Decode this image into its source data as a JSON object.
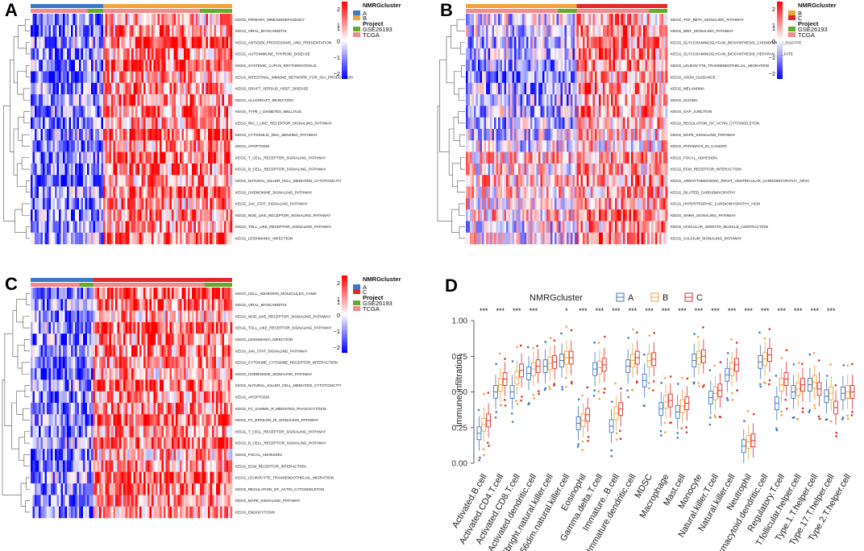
{
  "colors": {
    "A": "#3A78C9",
    "B": "#F2A33A",
    "C": "#E4292B",
    "GSE26193": "#66AA2B",
    "TCGA": "#F08C8C",
    "high": "#FF0000",
    "low": "#0000FF",
    "mid": "#FFFFFF"
  },
  "panels": [
    {
      "label": "A",
      "clusters": [
        "A",
        "B"
      ],
      "split": 0.36,
      "gse": [
        0.22,
        0.25
      ],
      "legend": {
        "title": "NMRGcluster",
        "project_title": "Project",
        "entries": [
          "A",
          "B"
        ],
        "projects": [
          "GSE26193",
          "TCGA"
        ],
        "scale_ticks": [
          "2",
          "1",
          "0",
          "−1",
          "−2"
        ],
        "note": "1"
      },
      "rows": [
        "KEGG_PRIMARY_IMMUNODEFICIENCY",
        "KEGG_VIRAL_MYOCARDITIS",
        "KEGG_ANTIGEN_PROCESSING_AND_PRESENTATION",
        "KEGG_AUTOIMMUNE_THYROID_DISEASE",
        "KEGG_SYSTEMIC_LUPUS_ERYTHEMATOSUS",
        "KEGG_INTESTINAL_IMMUNE_NETWORK_FOR_IGA_PRODUCTION",
        "KEGG_GRAFT_VERSUS_HOST_DISEASE",
        "KEGG_ALLOGRAFT_REJECTION",
        "KEGG_TYPE_I_DIABETES_MELLITUS",
        "KEGG_RIG_I_LIKE_RECEPTOR_SIGNALING_PATHWAY",
        "KEGG_CYTOSOLIC_DNA_SENSING_PATHWAY",
        "KEGG_APOPTOSIS",
        "KEGG_T_CELL_RECEPTOR_SIGNALING_PATHWAY",
        "KEGG_B_CELL_RECEPTOR_SIGNALING_PATHWAY",
        "KEGG_NATURAL_KILLER_CELL_MEDIATED_CYTOTOXICITY",
        "KEGG_CHEMOKINE_SIGNALING_PATHWAY",
        "KEGG_JAK_STAT_SIGNALING_PATHWAY",
        "KEGG_NOD_LIKE_RECEPTOR_SIGNALING_PATHWAY",
        "KEGG_TOLL_LIKE_RECEPTOR_SIGNALING_PATHWAY",
        "KEGG_LEISHMANIA_INFECTION"
      ]
    },
    {
      "label": "B",
      "clusters": [
        "B",
        "C"
      ],
      "split": 0.55,
      "gse": [
        0.17,
        0.2
      ],
      "legend": {
        "title": "NMRGcluster",
        "project_title": "Project",
        "entries": [
          "B",
          "C"
        ],
        "projects": [
          "GSE26193",
          "TCGA"
        ],
        "scale_ticks": [
          "2",
          "1",
          "0",
          "−1",
          "−2"
        ],
        "note": "1"
      },
      "rows": [
        "KEGG_TGF_BETA_SIGNALING_PATHWAY",
        "KEGG_WNT_SIGNALING_PATHWAY",
        "KEGG_GLYCOSAMINOGLYCAN_BIOSYNTHESIS_CHONDROITIN_SULFATE",
        "KEGG_GLYCOSAMINOGLYCAN_BIOSYNTHESIS_HEPARAN_SULFATE",
        "KEGG_LEUKOCYTE_TRANSENDOTHELIAL_MIGRATION",
        "KEGG_AXON_GUIDANCE",
        "KEGG_MELANOMA",
        "KEGG_GLIOMA",
        "KEGG_GAP_JUNCTION",
        "KEGG_REGULATION_OF_ACTIN_CYTOSKELETON",
        "KEGG_MAPK_SIGNALING_PATHWAY",
        "KEGG_PATHWAYS_IN_CANCER",
        "KEGG_FOCAL_ADHESION",
        "KEGG_ECM_RECEPTOR_INTERACTION",
        "KEGG_ARRHYTHMOGENIC_RIGHT_VENTRICULAR_CARDIOMYOPATHY_ARVC",
        "KEGG_DILATED_CARDIOMYOPATHY",
        "KEGG_HYPERTROPHIC_CARDIOMYOPATHY_HCM",
        "KEGG_GNRH_SIGNALING_PATHWAY",
        "KEGG_VASCULAR_SMOOTH_MUSCLE_CONTRACTION",
        "KEGG_CALCIUM_SIGNALING_PATHWAY"
      ]
    },
    {
      "label": "C",
      "clusters": [
        "A",
        "C"
      ],
      "split": 0.31,
      "gse": [
        0.22,
        0.2
      ],
      "legend": {
        "title": "NMRGcluster",
        "project_title": "Project",
        "entries": [
          "A",
          "C"
        ],
        "projects": [
          "GSE26193",
          "TCGA"
        ],
        "scale_ticks": [
          "2",
          "1",
          "0",
          "−1",
          "−2"
        ],
        "note": "1"
      },
      "rows": [
        "KEGG_CELL_ADHESION_MOLECULES_CAMS",
        "KEGG_VIRAL_MYOCARDITIS",
        "KEGG_NOD_LIKE_RECEPTOR_SIGNALING_PATHWAY",
        "KEGG_TOLL_LIKE_RECEPTOR_SIGNALING_PATHWAY",
        "KEGG_LEISHMANIA_INFECTION",
        "KEGG_JAK_STAT_SIGNALING_PATHWAY",
        "KEGG_CYTOKINE_CYTOKINE_RECEPTOR_INTERACTION",
        "KEGG_CHEMOKINE_SIGNALING_PATHWAY",
        "KEGG_NATURAL_KILLER_CELL_MEDIATED_CYTOTOXICITY",
        "KEGG_APOPTOSIS",
        "KEGG_FC_GAMMA_R_MEDIATED_PHAGOCYTOSIS",
        "KEGG_FC_EPSILON_RI_SIGNALING_PATHWAY",
        "KEGG_T_CELL_RECEPTOR_SIGNALING_PATHWAY",
        "KEGG_B_CELL_RECEPTOR_SIGNALING_PATHWAY",
        "KEGG_FOCAL_ADHESION",
        "KEGG_ECM_RECEPTOR_INTERACTION",
        "KEGG_LEUKOCYTE_TRANSENDOTHELIAL_MIGRATION",
        "KEGG_REGULATION_OF_ACTIN_CYTOSKELETON",
        "KEGG_MAPK_SIGNALING_PATHWAY",
        "KEGG_ENDOCYTOSIS"
      ]
    }
  ],
  "chart_data": {
    "type": "box",
    "label": "D",
    "legend_title": "NMRGcluster",
    "groups": [
      "A",
      "B",
      "C"
    ],
    "ylabel": "Immune infiltration",
    "ylim": [
      0,
      1
    ],
    "yticks": [
      "0.00",
      "0.25",
      "0.50",
      "0.75",
      "1.00"
    ],
    "categories": [
      "Activated.B.cell",
      "Activated.CD4.T.cell",
      "Activated.CD8.T.cell",
      "Activated.dendritic.cell",
      "CD56bright.natural.killer.cell",
      "CD56dim.natural.killer.cell",
      "Eosinophil",
      "Gamma.delta.T.cell",
      "Immature..B.cell",
      "Immature.dendritic.cell",
      "MDSC",
      "Macrophage",
      "Mast.cell",
      "Monocyte",
      "Natural.killer.T.cell",
      "Natural.killer.cell",
      "Neutrophil",
      "Plasmacytoid.dendritic.cell",
      "Regulatory.T.cell",
      "T.follicular.helper.cell",
      "Type.1.T.helper.cell",
      "Type.17.T.helper.cell",
      "Type.2.T.helper.cell"
    ],
    "significance": [
      "***",
      "***",
      "***",
      "***",
      "",
      "*",
      "***",
      "***",
      "***",
      "***",
      "***",
      "***",
      "***",
      "***",
      "***",
      "***",
      "***",
      "***",
      "***",
      "***",
      "***",
      "***",
      ""
    ],
    "medians": {
      "A": [
        0.21,
        0.5,
        0.5,
        0.63,
        0.68,
        0.72,
        0.28,
        0.66,
        0.26,
        0.68,
        0.58,
        0.38,
        0.36,
        0.72,
        0.46,
        0.62,
        0.12,
        0.71,
        0.42,
        0.5,
        0.55,
        0.47,
        0.49
      ],
      "B": [
        0.27,
        0.55,
        0.6,
        0.66,
        0.7,
        0.74,
        0.3,
        0.67,
        0.35,
        0.72,
        0.72,
        0.43,
        0.4,
        0.74,
        0.49,
        0.66,
        0.15,
        0.73,
        0.55,
        0.52,
        0.57,
        0.49,
        0.5
      ],
      "C": [
        0.3,
        0.59,
        0.65,
        0.68,
        0.71,
        0.74,
        0.34,
        0.69,
        0.38,
        0.74,
        0.73,
        0.44,
        0.42,
        0.75,
        0.51,
        0.69,
        0.16,
        0.76,
        0.59,
        0.55,
        0.52,
        0.39,
        0.5
      ]
    }
  }
}
